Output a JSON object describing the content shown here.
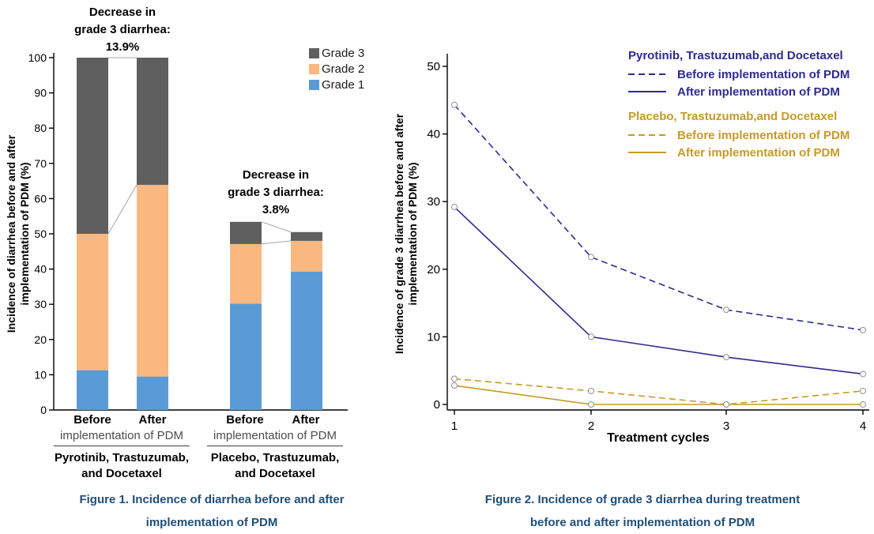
{
  "accent_colors": {
    "caption_blue": "#1f4e79",
    "pyrotinib_navy": "#2d2a8f",
    "placebo_gold": "#c69a24",
    "grade1_blue": "#5b9bd5",
    "grade2_orange": "#f9b880",
    "grade3_gray": "#5f5f5f"
  },
  "chart_data": [
    {
      "type": "bar",
      "stacked": true,
      "ylabel_lines": [
        "Incidence of diarrhea before and after",
        "implementation of PDM (%)"
      ],
      "ylim": [
        0,
        100
      ],
      "yticks": [
        0,
        10,
        20,
        30,
        40,
        50,
        60,
        70,
        80,
        90,
        100
      ],
      "grid": false,
      "series_keys": [
        "grade1",
        "grade2",
        "grade3"
      ],
      "series_colors": {
        "grade1": "#5b9bd5",
        "grade2": "#f9b880",
        "grade3": "#5f5f5f"
      },
      "legend": [
        {
          "label": "Grade 3",
          "color": "#5f5f5f"
        },
        {
          "label": "Grade 2",
          "color": "#f9b880"
        },
        {
          "label": "Grade 1",
          "color": "#5b9bd5"
        }
      ],
      "legend_position": "top-right",
      "groups": [
        {
          "name_lines": [
            "Pyrotinib, Trastuzumab,",
            "and Docetaxel"
          ],
          "sub_label": "implementation of PDM",
          "annotation_lines": [
            "Decrease in",
            "grade 3 diarrhea:",
            "13.9%"
          ],
          "bars": [
            {
              "label": "Before",
              "values": {
                "grade1": 11.3,
                "grade2": 38.7,
                "grade3": 50.0
              }
            },
            {
              "label": "After",
              "values": {
                "grade1": 9.5,
                "grade2": 54.4,
                "grade3": 36.1
              }
            }
          ]
        },
        {
          "name_lines": [
            "Placebo, Trastuzumab,",
            "and Docetaxel"
          ],
          "sub_label": "implementation of PDM",
          "annotation_lines": [
            "Decrease in",
            "grade 3 diarrhea:",
            "3.8%"
          ],
          "bars": [
            {
              "label": "Before",
              "values": {
                "grade1": 30.2,
                "grade2": 16.9,
                "grade3": 6.3
              }
            },
            {
              "label": "After",
              "values": {
                "grade1": 39.3,
                "grade2": 8.7,
                "grade3": 2.5
              }
            }
          ]
        }
      ],
      "caption_lines": [
        "Figure 1. Incidence of diarrhea before and after",
        "implementation of PDM"
      ]
    },
    {
      "type": "line",
      "x": [
        1,
        2,
        3,
        4
      ],
      "xlabel": "Treatment cycles",
      "ylabel_lines": [
        "Incidence of grade 3 diarrhea before and after",
        "implementation of PDM (%)"
      ],
      "ylim": [
        0,
        50
      ],
      "yticks": [
        0,
        10,
        20,
        30,
        40,
        50
      ],
      "grid": false,
      "marker": "open-circle",
      "series": [
        {
          "name": "Pyrotinib, Trastuzumab,and Docetaxel - Before implementation of PDM",
          "color": "#2d2a8f",
          "dashed": true,
          "values": [
            44.3,
            21.8,
            14.0,
            11.0
          ]
        },
        {
          "name": "Pyrotinib, Trastuzumab,and Docetaxel - After implementation of PDM",
          "color": "#2d2a8f",
          "dashed": false,
          "values": [
            29.2,
            10.0,
            7.0,
            4.5
          ]
        },
        {
          "name": "Placebo, Trastuzumab,and Docetaxel - Before implementation of PDM",
          "color": "#c69a24",
          "dashed": true,
          "values": [
            3.8,
            2.0,
            0.0,
            2.0
          ]
        },
        {
          "name": "Placebo, Trastuzumab,and Docetaxel - After implementation of PDM",
          "color": "#c69a24",
          "dashed": false,
          "values": [
            2.8,
            0.0,
            0.0,
            0.0
          ]
        }
      ],
      "legend_groups": [
        {
          "title": "Pyrotinib, Trastuzumab,and Docetaxel",
          "color": "#2d2a8f",
          "entries": [
            {
              "style": "dashed",
              "label": "Before implementation of PDM"
            },
            {
              "style": "solid",
              "label": "After implementation of PDM"
            }
          ]
        },
        {
          "title": "Placebo, Trastuzumab,and Docetaxel",
          "color": "#c69a24",
          "entries": [
            {
              "style": "dashed",
              "label": "Before implementation of PDM"
            },
            {
              "style": "solid",
              "label": "After implementation of PDM"
            }
          ]
        }
      ],
      "legend_position": "top-right",
      "caption_lines": [
        "Figure 2. Incidence of grade 3 diarrhea during treatment",
        "before and after implementation of PDM"
      ]
    }
  ]
}
